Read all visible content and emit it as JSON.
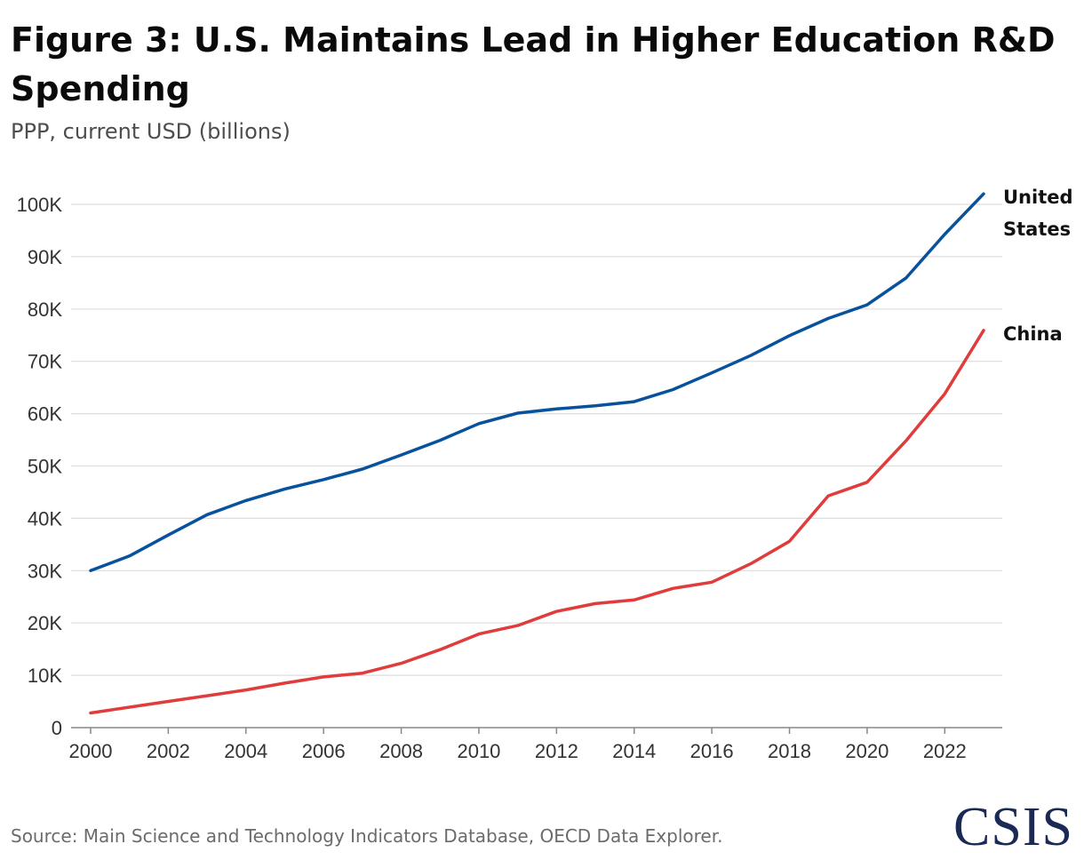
{
  "header": {
    "title": "Figure 3: U.S. Maintains Lead in Higher Education R&D Spending",
    "subtitle": "PPP, current USD (billions)"
  },
  "footer": {
    "source": "Source: Main Science and Technology Indicators Database, OECD Data Explorer.",
    "logo": "CSIS"
  },
  "colors": {
    "united_states": "#08519c",
    "china": "#e03c3c",
    "grid": "#dddddd",
    "axis": "#888888"
  },
  "chart_data": {
    "type": "line",
    "title": "Figure 3: U.S. Maintains Lead in Higher Education R&D Spending",
    "subtitle": "PPP, current USD (billions)",
    "xlabel": "",
    "ylabel": "",
    "x": [
      2000,
      2001,
      2002,
      2003,
      2004,
      2005,
      2006,
      2007,
      2008,
      2009,
      2010,
      2011,
      2012,
      2013,
      2014,
      2015,
      2016,
      2017,
      2018,
      2019,
      2020,
      2021,
      2022,
      2023
    ],
    "xlim": [
      2000,
      2023
    ],
    "ylim": [
      0,
      100000
    ],
    "x_ticks": [
      2000,
      2002,
      2004,
      2006,
      2008,
      2010,
      2012,
      2014,
      2016,
      2018,
      2020,
      2022
    ],
    "x_tick_labels": [
      "2000",
      "2002",
      "2004",
      "2006",
      "2008",
      "2010",
      "2012",
      "2014",
      "2016",
      "2018",
      "2020",
      "2022"
    ],
    "y_ticks": [
      0,
      10000,
      20000,
      30000,
      40000,
      50000,
      60000,
      70000,
      80000,
      90000,
      100000
    ],
    "y_tick_labels": [
      "0",
      "10K",
      "20K",
      "30K",
      "40K",
      "50K",
      "60K",
      "70K",
      "80K",
      "90K",
      "100K"
    ],
    "grid": true,
    "legend": "direct labels at line ends, right",
    "series": [
      {
        "name": "United States",
        "label_lines": [
          "United",
          "States"
        ],
        "color": "#08519c",
        "values": [
          30000,
          32800,
          36800,
          40700,
          43400,
          45600,
          47400,
          49400,
          52100,
          54900,
          58100,
          60100,
          60900,
          61500,
          62300,
          64600,
          67800,
          71100,
          74900,
          78200,
          80800,
          85900,
          94300,
          102000
        ]
      },
      {
        "name": "China",
        "label_lines": [
          "China"
        ],
        "color": "#e03c3c",
        "values": [
          2800,
          3900,
          5000,
          6100,
          7200,
          8500,
          9700,
          10400,
          12300,
          14900,
          17900,
          19500,
          22200,
          23700,
          24400,
          26600,
          27800,
          31300,
          35600,
          44300,
          46900,
          54800,
          63800,
          75900
        ]
      }
    ]
  }
}
